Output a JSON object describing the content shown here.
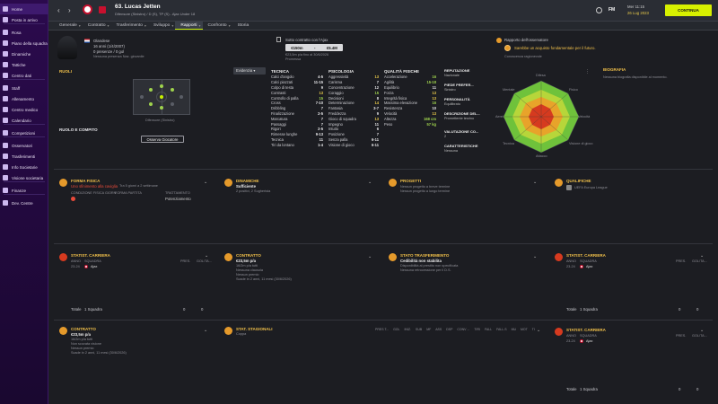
{
  "sidebar": {
    "items": [
      {
        "label": "Home"
      },
      {
        "label": "Posta in arrivo"
      },
      {
        "label": "Rosa"
      },
      {
        "label": "Piano della squadra"
      },
      {
        "label": "Dinamiche"
      },
      {
        "label": "Tattiche"
      },
      {
        "label": "Centro dati"
      },
      {
        "label": "Staff"
      },
      {
        "label": "Allenamento"
      },
      {
        "label": "Centro medico"
      },
      {
        "label": "Calendario"
      },
      {
        "label": "Competizioni"
      },
      {
        "label": "Osservatori"
      },
      {
        "label": "Trasferimenti"
      },
      {
        "label": "Info Societarie"
      },
      {
        "label": "Visione societaria"
      },
      {
        "label": "Finanze"
      },
      {
        "label": "Dev. Centre"
      }
    ]
  },
  "header": {
    "player_title": "63. Lucas Jetten",
    "subtitle": "Difensore (Sinistro) / D (S), TP (S) - Ajax Under 18",
    "date_line1": "Mer 11:15",
    "date_line2": "26 Lug 2023",
    "fm_badge": "FM",
    "continue_label": "CONTINUA"
  },
  "tabs": [
    {
      "label": "Generale"
    },
    {
      "label": "Contratto"
    },
    {
      "label": "Trasferimento"
    },
    {
      "label": "Sviluppo"
    },
    {
      "label": "Rapporti"
    },
    {
      "label": "Confronto"
    },
    {
      "label": "Storia"
    }
  ],
  "profile": {
    "nationality": "Olandese",
    "age": "16 anni (1/4/2007)",
    "appearances": "0 presenze / 0 gol",
    "foot_note": "Nessuna presenza Naz. giovanile"
  },
  "contract_box": {
    "line1": "Sotto contratto con l'Ajax",
    "value_low": "€150m",
    "value_high": "€5.4M",
    "line2": "€23,5m p/a fino al 30/6/2026",
    "line3": "Promessa"
  },
  "scout_report": {
    "title": "Rapporto dell'osservatore",
    "text": "Sarebbe un acquisto fondamentale per il futuro.",
    "note": "Conoscenza ragionevole"
  },
  "roles": {
    "title": "RUOLI",
    "dropdown": "Evidenzia",
    "position": "Difensore (Sinistro)",
    "role_task": "RUOLO E COMPITO",
    "observe_btn": "Osserva Giocatore"
  },
  "attributes": {
    "tecnica_title": "TECNICA",
    "tecnica": [
      [
        "Calci d'angolo",
        "4-5"
      ],
      [
        "Calci piazzati",
        "11-15"
      ],
      [
        "Colpo di testa",
        "9"
      ],
      [
        "Contrasti",
        "13"
      ],
      [
        "Controllo di palla",
        "15"
      ],
      [
        "Cross",
        "7-10"
      ],
      [
        "Dribbling",
        "7"
      ],
      [
        "Finalizzazione",
        "2-5"
      ],
      [
        "Marcatura",
        "7"
      ],
      [
        "Passaggi",
        "7"
      ],
      [
        "Rigori",
        "2-5"
      ],
      [
        "Rimesse lunghe",
        "9-13"
      ],
      [
        "Tecnica",
        "11"
      ],
      [
        "Tiri da lontano",
        "1-4"
      ]
    ],
    "psicologia_title": "PSICOLOGIA",
    "psicologia": [
      [
        "Aggressività",
        "13"
      ],
      [
        "Carisma",
        "7"
      ],
      [
        "Concentrazione",
        "12"
      ],
      [
        "Coraggio",
        "15"
      ],
      [
        "Decisioni",
        "8"
      ],
      [
        "Determinazione",
        "14"
      ],
      [
        "Fantasia",
        "3-7"
      ],
      [
        "Freddezza",
        "9"
      ],
      [
        "Gioco di squadra",
        "13"
      ],
      [
        "Impegno",
        "11"
      ],
      [
        "Intuito",
        "6"
      ],
      [
        "Posizione",
        "7"
      ],
      [
        "Senza palla",
        "6-11"
      ],
      [
        "Visione di gioco",
        "6-11"
      ]
    ],
    "fisica_title": "QUALITÀ FISICHE",
    "fisica": [
      [
        "Accelerazione",
        "16"
      ],
      [
        "Agilità",
        "15-18"
      ],
      [
        "Equilibrio",
        "11"
      ],
      [
        "Forza",
        "13"
      ],
      [
        "Integrità fisica",
        "13"
      ],
      [
        "Massima elevazione",
        "16"
      ],
      [
        "Resistenza",
        "10"
      ],
      [
        "Velocità",
        "13"
      ],
      [
        "Altezza",
        "168 cm"
      ],
      [
        "Peso",
        "57 kg"
      ]
    ]
  },
  "reputation": {
    "title": "REPUTAZIONE",
    "value": "Nazionale",
    "foot_title": "PIEDE PREFER...",
    "foot_value": "Sinistro",
    "pers_title": "PERSONALITÀ",
    "pers_value": "Equilibrato",
    "desc_title": "DESCRIZIONE DEL...",
    "desc_value": "Promettente terzino",
    "val_title": "VALUTAZIONE CO...",
    "val_value": "2",
    "char_title": "CARATTERISTICHE",
    "char_value": "Nessuna"
  },
  "radar": {
    "labels": [
      "Difesa",
      "Fisico",
      "Velocità",
      "Visione di gioco",
      "Attacco",
      "Tecnica",
      "Aerei",
      "Mentale"
    ]
  },
  "biography": {
    "title": "BIOGRAFIA",
    "text": "Nessuna biografia disponibile al momento."
  },
  "fitness": {
    "title": "FORMA FISICA",
    "status": "Uno sfinimento alla caviglia",
    "sub": "Tra 5 giorni a 2 settimane",
    "col1": "CONDIZIONE FISICA GIORN.",
    "col2": "FORMA PARTITA",
    "col3": "TRATTAMENTO",
    "treatment": "Potenziamento"
  },
  "dinamiche": {
    "title": "DINAMICHE",
    "status": "Sufficiente",
    "sub": "2 positivi, 2 Sugherista"
  },
  "progetti": {
    "title": "PROGETTI",
    "line1": "Nessun progetto a breve termine",
    "line2": "Nessun progetto a lungo termine"
  },
  "qualifiche": {
    "title": "QUALIFICHE",
    "value": "UEFA Europa League"
  },
  "career_stats": {
    "title": "STATIST. CARRIERA",
    "col_anno": "ANNO",
    "col_squadra": "SQUADRA",
    "col_pres": "PRES.",
    "col_gol": "GOL/TA...",
    "season": "23-24",
    "club": "Ajax",
    "total_label": "Totale",
    "total_team": "1 Squadra",
    "total_pres": "0",
    "total_gol": "0"
  },
  "contract_panel": {
    "title": "CONTRATTO",
    "value": "€23,5m p/a",
    "l1": "16/2m p/a tutti",
    "l2": "Nessuna clausola",
    "l3": "Nessun premio",
    "l4": "Scade in 2 anni, 11 mesi (30/6/2026)"
  },
  "transfer_status": {
    "title": "STATO TRASFERIMENTO",
    "status": "Cedibilità non stabilita",
    "l1": "Disponibilità al prestito non specificata",
    "l2": "Nessuna retrocessione per il D.S."
  },
  "season_stats": {
    "title": "STAT. STAGIONALI",
    "team": "Coppa",
    "cols": [
      "PRES T...",
      "GOL",
      "INIZ.",
      "SUB",
      "MF",
      "ASS",
      "DSP",
      "CONV ...",
      "TIRI",
      "FALL",
      "FALL.S",
      "MU",
      "MOT",
      "TI"
    ]
  },
  "career_stats2": {
    "title": "STATIST. CARRIERA",
    "col_anno": "ANNO",
    "col_squadra": "SQUADRA",
    "col_pres": "PRES.",
    "col_gol": "GOL/TA...",
    "season": "23-24",
    "club": "Ajax",
    "total_label": "Totale",
    "total_team": "1 Squadra",
    "total_pres": "0",
    "total_gol": "0"
  },
  "contract_panel2": {
    "title": "CONTRATTO",
    "value": "€23,5m p/a",
    "l1": "16/2m p/a tutti",
    "l2": "Non scovata visione",
    "l3": "Nessun premio",
    "l4": "Scade in 2 anni, 11 mesi (30/6/2026)"
  },
  "career_stats3": {
    "title": "STATIST. CARRIERA",
    "col_anno": "ANNO",
    "col_squadra": "SQUADRA",
    "col_pres": "PRES.",
    "col_gol": "GOL/TA...",
    "season": "23-24",
    "club": "Ajax",
    "total_label": "Totale",
    "total_team": "1 Squadra",
    "total_pres": "0",
    "total_gol": "0"
  },
  "colors": {
    "accent": "#d7f000",
    "sidebar": "#2b0a4d",
    "panel": "#24262c",
    "title": "#f2c14a"
  }
}
